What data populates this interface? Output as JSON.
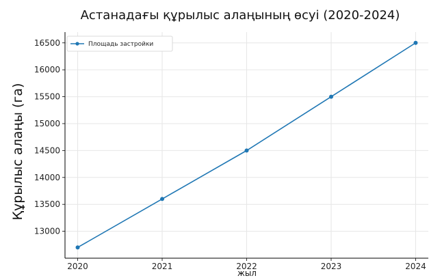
{
  "chart_data": {
    "type": "line",
    "title": "Астанадағы құрылыс алаңының өсуі (2020-2024)",
    "xlabel": "жыл",
    "ylabel": "Құрылыс алаңы (га)",
    "categories": [
      "2020",
      "2021",
      "2022",
      "2023",
      "2024"
    ],
    "x": [
      2020,
      2021,
      2022,
      2023,
      2024
    ],
    "series": [
      {
        "name": "Площадь застройки",
        "values": [
          12700,
          13600,
          14500,
          15500,
          16500
        ]
      }
    ],
    "xlim": [
      2019.85,
      2024.15
    ],
    "ylim": [
      12500,
      16700
    ],
    "yticks": [
      13000,
      13500,
      14000,
      14500,
      15000,
      15500,
      16000,
      16500
    ],
    "grid": true,
    "legend_position": "top-left",
    "colors": {
      "series": "#1f77b4",
      "grid": "#e6e6e6",
      "axis": "#000000"
    }
  }
}
